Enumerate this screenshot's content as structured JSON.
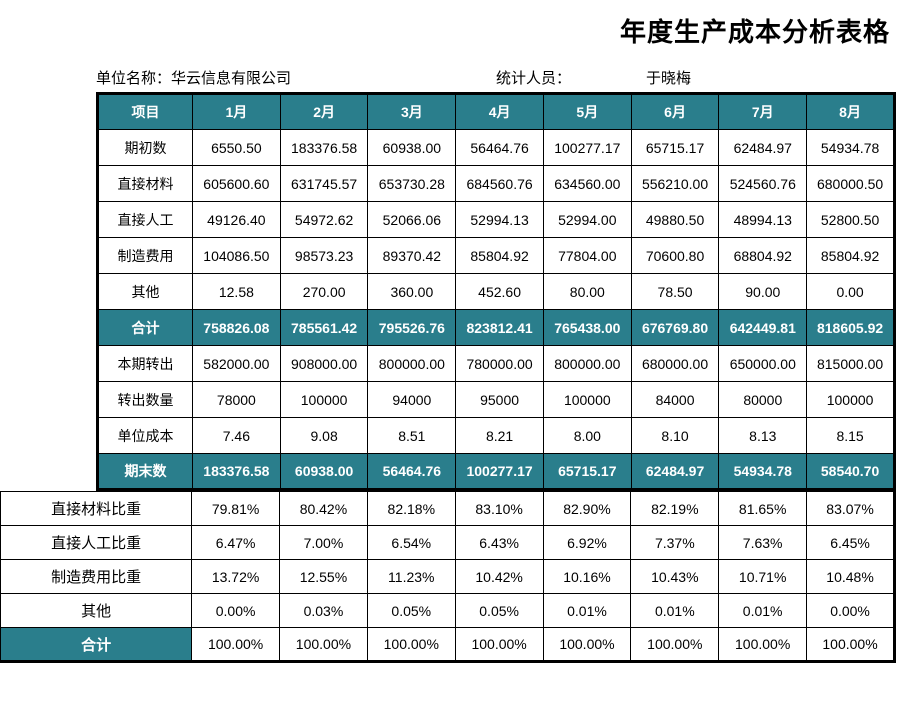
{
  "title": "年度生产成本分析表格",
  "meta": {
    "company_label": "单位名称：",
    "company": "华云信息有限公司",
    "stat_label": "统计人员：",
    "stat_name": "于晓梅"
  },
  "colors": {
    "header_bg": "#2a7e8c",
    "header_fg": "#ffffff",
    "border": "#000000",
    "page_bg": "#ffffff"
  },
  "columns": [
    "项目",
    "1月",
    "2月",
    "3月",
    "4月",
    "5月",
    "6月",
    "7月",
    "8月"
  ],
  "rows_top": [
    {
      "label": "期初数",
      "v": [
        "6550.50",
        "183376.58",
        "60938.00",
        "56464.76",
        "100277.17",
        "65715.17",
        "62484.97",
        "54934.78"
      ]
    },
    {
      "label": "直接材料",
      "v": [
        "605600.60",
        "631745.57",
        "653730.28",
        "684560.76",
        "634560.00",
        "556210.00",
        "524560.76",
        "680000.50"
      ]
    },
    {
      "label": "直接人工",
      "v": [
        "49126.40",
        "54972.62",
        "52066.06",
        "52994.13",
        "52994.00",
        "49880.50",
        "48994.13",
        "52800.50"
      ]
    },
    {
      "label": "制造费用",
      "v": [
        "104086.50",
        "98573.23",
        "89370.42",
        "85804.92",
        "77804.00",
        "70600.80",
        "68804.92",
        "85804.92"
      ]
    },
    {
      "label": "其他",
      "v": [
        "12.58",
        "270.00",
        "360.00",
        "452.60",
        "80.00",
        "78.50",
        "90.00",
        "0.00"
      ]
    }
  ],
  "row_sum": {
    "label": "合计",
    "v": [
      "758826.08",
      "785561.42",
      "795526.76",
      "823812.41",
      "765438.00",
      "676769.80",
      "642449.81",
      "818605.92"
    ]
  },
  "rows_mid": [
    {
      "label": "本期转出",
      "v": [
        "582000.00",
        "908000.00",
        "800000.00",
        "780000.00",
        "800000.00",
        "680000.00",
        "650000.00",
        "815000.00"
      ]
    },
    {
      "label": "转出数量",
      "v": [
        "78000",
        "100000",
        "94000",
        "95000",
        "100000",
        "84000",
        "80000",
        "100000"
      ]
    },
    {
      "label": "单位成本",
      "v": [
        "7.46",
        "9.08",
        "8.51",
        "8.21",
        "8.00",
        "8.10",
        "8.13",
        "8.15"
      ]
    }
  ],
  "row_end": {
    "label": "期末数",
    "v": [
      "183376.58",
      "60938.00",
      "56464.76",
      "100277.17",
      "65715.17",
      "62484.97",
      "54934.78",
      "58540.70"
    ]
  },
  "ratio_rows": [
    {
      "label": "直接材料比重",
      "v": [
        "79.81%",
        "80.42%",
        "82.18%",
        "83.10%",
        "82.90%",
        "82.19%",
        "81.65%",
        "83.07%"
      ]
    },
    {
      "label": "直接人工比重",
      "v": [
        "6.47%",
        "7.00%",
        "6.54%",
        "6.43%",
        "6.92%",
        "7.37%",
        "7.63%",
        "6.45%"
      ]
    },
    {
      "label": "制造费用比重",
      "v": [
        "13.72%",
        "12.55%",
        "11.23%",
        "10.42%",
        "10.16%",
        "10.43%",
        "10.71%",
        "10.48%"
      ]
    },
    {
      "label": "其他",
      "v": [
        "0.00%",
        "0.03%",
        "0.05%",
        "0.05%",
        "0.01%",
        "0.01%",
        "0.01%",
        "0.00%"
      ]
    }
  ],
  "ratio_sum": {
    "label": "合计",
    "v": [
      "100.00%",
      "100.00%",
      "100.00%",
      "100.00%",
      "100.00%",
      "100.00%",
      "100.00%",
      "100.00%"
    ]
  }
}
